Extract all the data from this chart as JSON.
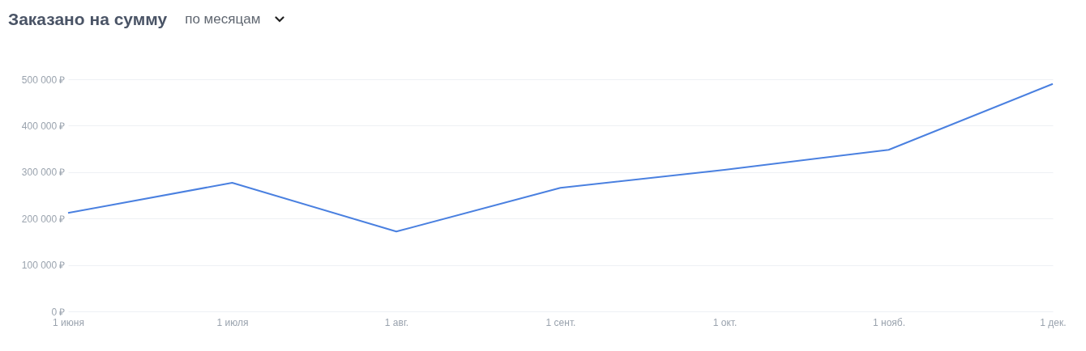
{
  "chart_data": {
    "type": "line",
    "title": "Заказано на сумму",
    "subtitle": "по месяцам",
    "categories": [
      "1 июня",
      "1 июля",
      "1 авг.",
      "1 сент.",
      "1 окт.",
      "1 нояб.",
      "1 дек."
    ],
    "series": [
      {
        "color": "#4a80e0",
        "values": [
          212000,
          277000,
          172000,
          266000,
          305000,
          348000,
          490000
        ]
      }
    ],
    "ylim": [
      0,
      500000
    ],
    "yticks": [
      {
        "value": 0,
        "label": "0 ₽"
      },
      {
        "value": 100000,
        "label": "100 000 ₽"
      },
      {
        "value": 200000,
        "label": "200 000 ₽"
      },
      {
        "value": 300000,
        "label": "300 000 ₽"
      },
      {
        "value": 400000,
        "label": "400 000 ₽"
      },
      {
        "value": 500000,
        "label": "500 000 ₽"
      }
    ],
    "grid": "y",
    "marker": "none",
    "line_style": "solid"
  }
}
